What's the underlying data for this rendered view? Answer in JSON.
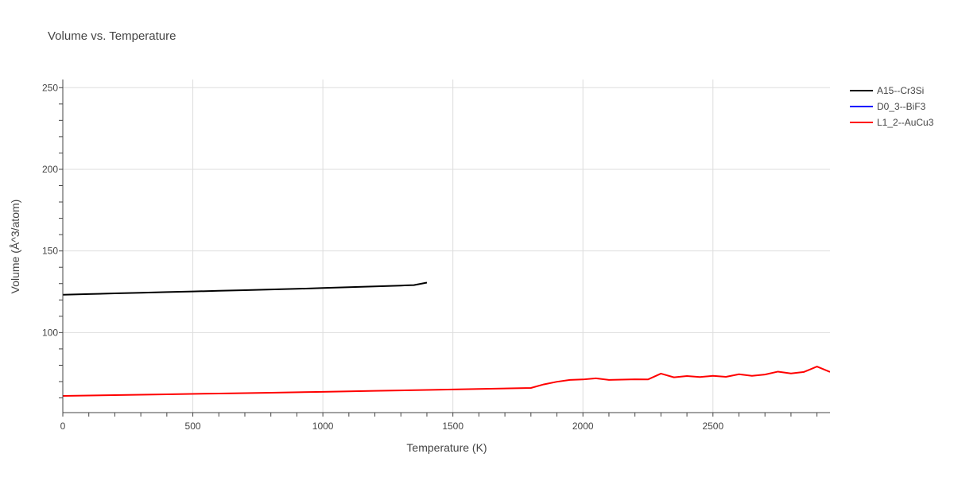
{
  "chart_data": {
    "type": "line",
    "title": "Volume vs. Temperature",
    "xlabel": "Temperature (K)",
    "ylabel": "Volume (Å^3/atom)",
    "xlim": [
      0,
      2950
    ],
    "ylim": [
      51,
      255
    ],
    "x_ticks": [
      0,
      500,
      1000,
      1500,
      2000,
      2500
    ],
    "y_ticks": [
      100,
      150,
      200,
      250
    ],
    "grid": true,
    "legend_position": "top-right",
    "series": [
      {
        "name": "A15--Cr3Si",
        "color": "#000000",
        "x": [
          0,
          100,
          200,
          300,
          400,
          500,
          600,
          700,
          800,
          900,
          1000,
          1100,
          1200,
          1300,
          1350,
          1400
        ],
        "y": [
          123.2,
          123.6,
          124.0,
          124.4,
          124.8,
          125.2,
          125.6,
          126.0,
          126.4,
          126.8,
          127.3,
          127.8,
          128.3,
          128.8,
          129.1,
          130.6
        ]
      },
      {
        "name": "D0_3--BiF3",
        "color": "#0000ff",
        "x": [],
        "y": []
      },
      {
        "name": "L1_2--AuCu3",
        "color": "#ff0000",
        "x": [
          0,
          200,
          400,
          600,
          800,
          1000,
          1200,
          1400,
          1600,
          1800,
          1850,
          1900,
          1950,
          2000,
          2050,
          2100,
          2150,
          2200,
          2250,
          2300,
          2350,
          2400,
          2450,
          2500,
          2550,
          2600,
          2650,
          2700,
          2750,
          2800,
          2850,
          2900,
          2950
        ],
        "y": [
          61.2,
          61.7,
          62.2,
          62.7,
          63.2,
          63.7,
          64.3,
          64.9,
          65.5,
          66.1,
          68.3,
          69.9,
          71.0,
          71.3,
          72.0,
          71.0,
          71.2,
          71.4,
          71.3,
          74.9,
          72.6,
          73.4,
          72.8,
          73.5,
          72.9,
          74.5,
          73.5,
          74.3,
          76.1,
          75.0,
          75.9,
          79.2,
          75.9
        ]
      }
    ]
  }
}
